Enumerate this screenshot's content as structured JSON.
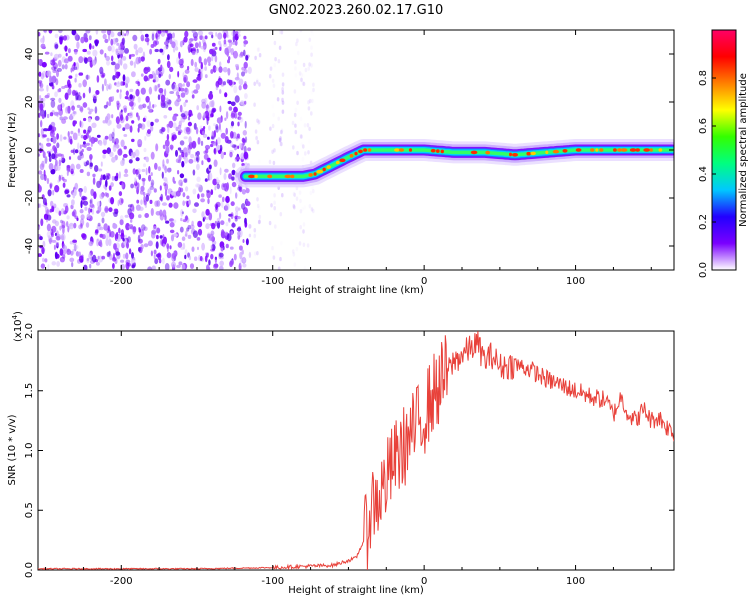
{
  "title": "GN02.2023.260.02.17.G10",
  "chart_data": [
    {
      "type": "heatmap",
      "xlabel": "Height of straight line (km)",
      "ylabel": "Frequency (Hz)",
      "xlim": [
        -255,
        165
      ],
      "ylim": [
        -50,
        50
      ],
      "xticks": [
        -200,
        -100,
        0,
        100
      ],
      "yticks": [
        -40,
        -20,
        0,
        20,
        40
      ],
      "colorbar": {
        "label": "Normalized spectral amplitude",
        "range": [
          0,
          1
        ],
        "ticks": [
          "0.0",
          "0.2",
          "0.4",
          "0.6",
          "0.8"
        ],
        "colormap": [
          "#ffffff",
          "#7a00ff",
          "#2200ff",
          "#00c8ff",
          "#00ff80",
          "#33ff00",
          "#ffff00",
          "#ff8000",
          "#ff0000",
          "#ff0066"
        ]
      },
      "ridge": {
        "x": [
          -118,
          -80,
          -72,
          -50,
          -40,
          -20,
          0,
          20,
          40,
          60,
          80,
          100,
          120,
          140,
          165
        ],
        "y": [
          -11,
          -11,
          -10,
          -3,
          0,
          0,
          0,
          -1,
          -1,
          -2,
          -1,
          0,
          0,
          0,
          0
        ]
      },
      "noise_region_x": [
        -255,
        -115
      ]
    },
    {
      "type": "line",
      "xlabel": "Height of straight line (km)",
      "ylabel": "SNR (10 * v/v)",
      "yscale_label": "(x10",
      "yscale_exp": "4",
      "yscale_close": ")",
      "xlim": [
        -255,
        165
      ],
      "ylim": [
        0,
        2.0
      ],
      "xticks": [
        -200,
        -100,
        0,
        100
      ],
      "yticks": [
        "0.0",
        "0.5",
        "1.0",
        "1.5",
        "2.0"
      ],
      "line_color": "#e8413a",
      "series": [
        {
          "x": [
            -255,
            -200,
            -150,
            -100,
            -80,
            -60,
            -45,
            -38,
            -35,
            -30,
            -25,
            -20,
            -15,
            -10,
            -5,
            0,
            5,
            10,
            15,
            20,
            25,
            30,
            35,
            40,
            45,
            50,
            60,
            70,
            80,
            90,
            100,
            110,
            120,
            125,
            130,
            135,
            140,
            145,
            150,
            155,
            160,
            165
          ],
          "y": [
            0.01,
            0.01,
            0.01,
            0.02,
            0.03,
            0.04,
            0.1,
            0.3,
            0.55,
            0.6,
            0.75,
            0.9,
            1.0,
            1.1,
            1.2,
            1.3,
            1.45,
            1.55,
            1.65,
            1.75,
            1.8,
            1.85,
            1.9,
            1.75,
            1.8,
            1.7,
            1.72,
            1.68,
            1.6,
            1.55,
            1.5,
            1.45,
            1.42,
            1.3,
            1.45,
            1.3,
            1.25,
            1.35,
            1.25,
            1.28,
            1.2,
            1.15
          ]
        }
      ]
    }
  ]
}
